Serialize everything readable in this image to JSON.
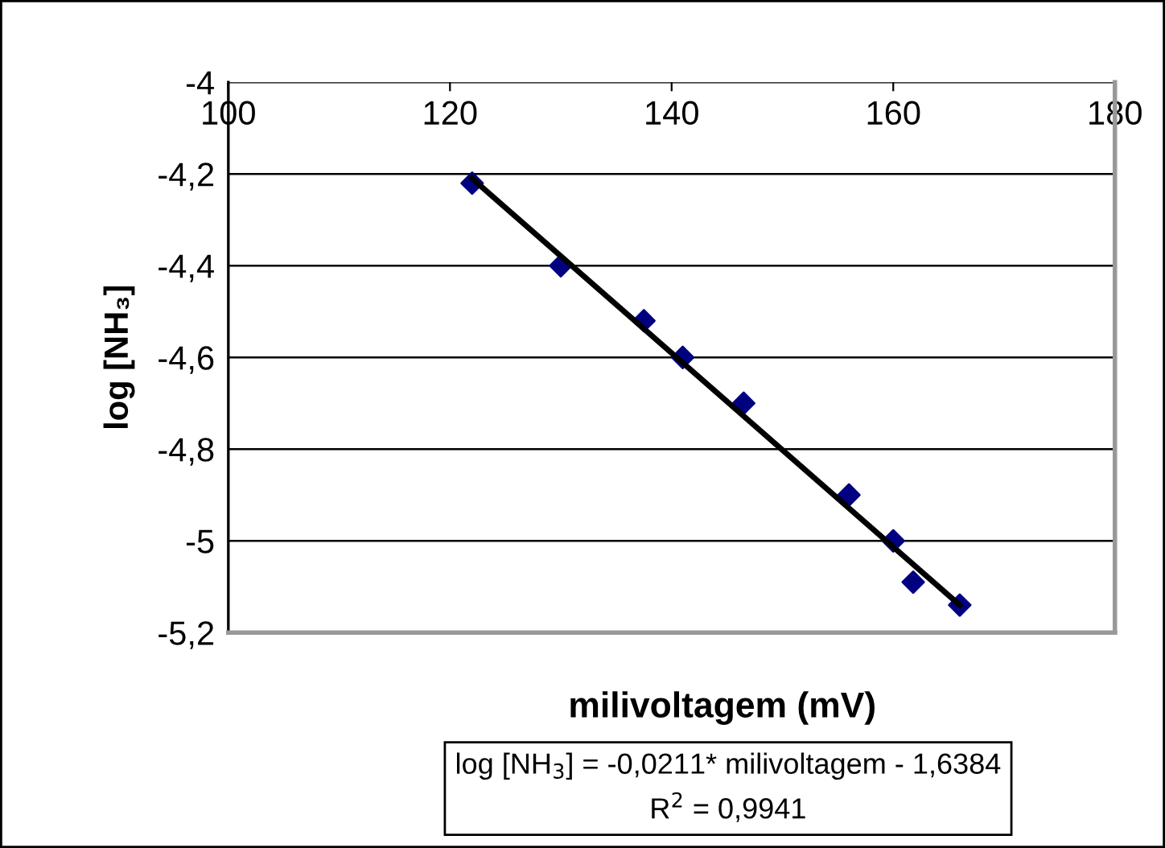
{
  "chart_data": {
    "type": "scatter",
    "xlabel": "milivoltagem (mV)",
    "ylabel": "log [NH₃]",
    "annotations": [
      "log [NH$_{3}$] = -0,0211* milivoltagem - 1,6384\nR$^{2}$ = 0,9941"
    ],
    "series": [
      {
        "color": "#000080",
        "marker": "diamond",
        "x": [
          122,
          130,
          137.5,
          141,
          146.5,
          156,
          160,
          161.8,
          166
        ],
        "values": [
          -4.22,
          -4.4,
          -4.52,
          -4.6,
          -4.7,
          -4.9,
          -5.0,
          -5.09,
          -5.14
        ]
      },
      {
        "type": "line",
        "color": "#000000",
        "marker": "none",
        "line_style": "solid",
        "x": [
          122,
          166
        ],
        "values": [
          -4.21,
          -5.14
        ]
      }
    ],
    "xlim": [
      100,
      180
    ],
    "xticks": [
      100,
      120,
      140,
      160,
      180
    ],
    "ylim": [
      -5.2,
      -4
    ],
    "yticks": [
      {
        "value": -5.2,
        "label": "-5,2"
      },
      {
        "value": -5,
        "label": "-5"
      },
      {
        "value": -4.8,
        "label": "-4,8"
      },
      {
        "value": -4.6,
        "label": "-4,6"
      },
      {
        "value": -4.4,
        "label": "-4,4"
      },
      {
        "value": -4.2,
        "label": "-4,2"
      },
      {
        "value": -4,
        "label": "-4"
      }
    ],
    "grid": "y",
    "legend": false
  }
}
